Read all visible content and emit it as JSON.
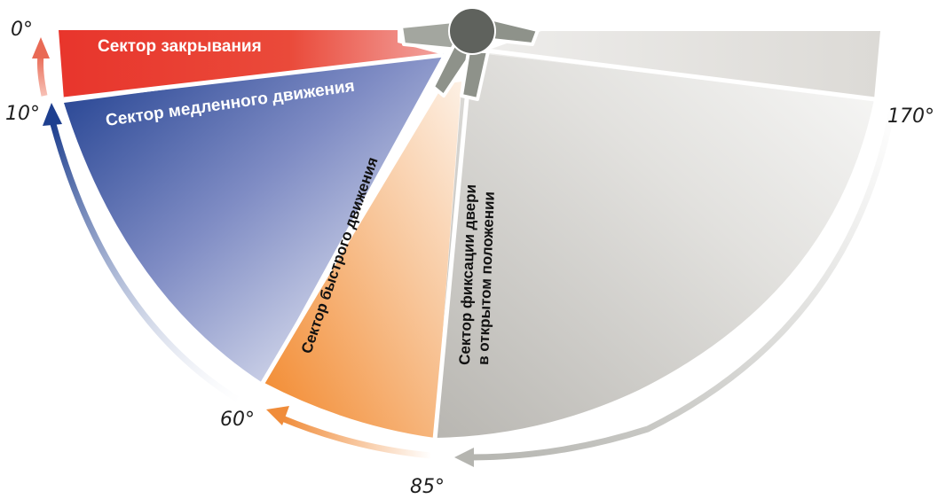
{
  "angles": {
    "a0": "0°",
    "a10": "10°",
    "a60": "60°",
    "a85": "85°",
    "a170": "170°"
  },
  "sectors": {
    "closing": {
      "label": "Сектор закрывания",
      "color": "#e8352c"
    },
    "slow": {
      "label": "Сектор медленного движения",
      "color": "#1e3f8f"
    },
    "fast": {
      "label": "Сектор быстрого движения",
      "color": "#f28a2e"
    },
    "hold": {
      "line1": "Сектор фиксации двери",
      "line2": "в открытом положении",
      "color": "#b9b7b2"
    }
  },
  "arrows": {
    "closing_color": "#e96a55",
    "slow_color": "#1e3f8f",
    "fast_color": "#f08c3a",
    "hold_color": "#b5b5b0"
  }
}
